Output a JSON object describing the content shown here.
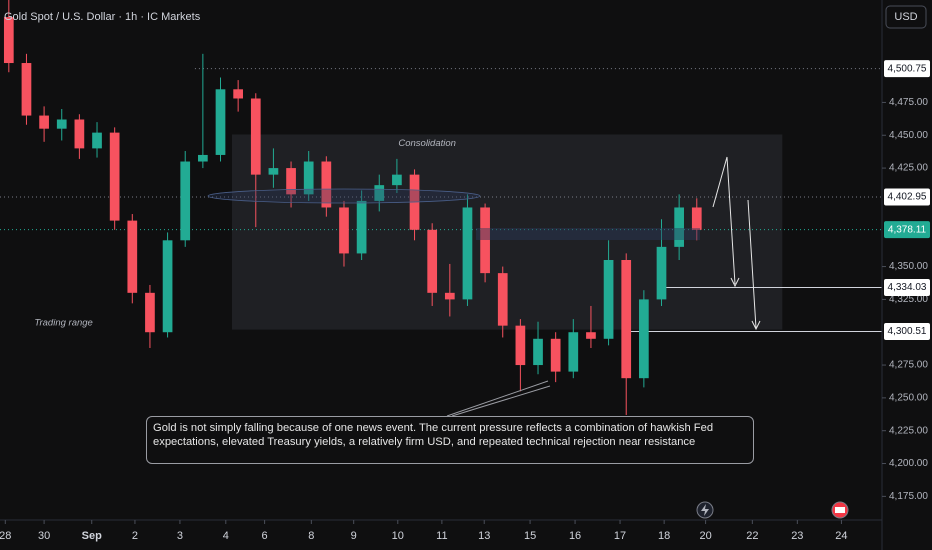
{
  "header": {
    "title": "Gold Spot / U.S. Dollar · 1h · IC Markets",
    "currency": "USD"
  },
  "chart_data": {
    "type": "candlestick",
    "x": [
      1,
      3,
      5,
      7,
      9,
      11,
      13,
      15,
      17,
      19,
      21,
      23,
      25,
      27,
      29,
      31,
      33,
      35,
      37,
      39,
      41,
      43,
      45,
      47,
      49,
      51,
      53,
      55,
      57,
      59,
      61,
      63,
      65,
      67,
      69,
      71,
      73,
      75,
      77,
      79
    ],
    "open": [
      4540,
      4505,
      4465,
      4455,
      4462,
      4440,
      4452,
      4385,
      4330,
      4300,
      4370,
      4430,
      4435,
      4485,
      4478,
      4420,
      4425,
      4405,
      4430,
      4395,
      4360,
      4400,
      4412,
      4420,
      4378,
      4330,
      4325,
      4395,
      4345,
      4305,
      4275,
      4295,
      4270,
      4300,
      4295,
      4355,
      4265,
      4325,
      4365,
      4395
    ],
    "high": [
      4553,
      4512,
      4472,
      4470,
      4466,
      4460,
      4456,
      4390,
      4336,
      4376,
      4438,
      4512,
      4494,
      4492,
      4482,
      4440,
      4430,
      4438,
      4434,
      4400,
      4408,
      4420,
      4432,
      4424,
      4383,
      4352,
      4405,
      4398,
      4350,
      4310,
      4308,
      4300,
      4310,
      4320,
      4370,
      4360,
      4332,
      4386,
      4405,
      4402
    ],
    "low": [
      4498,
      4458,
      4445,
      4446,
      4432,
      4433,
      4378,
      4322,
      4288,
      4296,
      4365,
      4425,
      4430,
      4468,
      4380,
      4410,
      4395,
      4400,
      4388,
      4350,
      4355,
      4392,
      4406,
      4370,
      4320,
      4312,
      4320,
      4338,
      4296,
      4255,
      4268,
      4262,
      4265,
      4288,
      4290,
      4237,
      4258,
      4320,
      4355,
      4370
    ],
    "close": [
      4505,
      4465,
      4455,
      4462,
      4440,
      4452,
      4385,
      4330,
      4300,
      4370,
      4430,
      4435,
      4485,
      4478,
      4420,
      4425,
      4405,
      4430,
      4395,
      4360,
      4400,
      4412,
      4420,
      4378,
      4330,
      4325,
      4395,
      4345,
      4305,
      4275,
      4295,
      4270,
      4300,
      4295,
      4355,
      4265,
      4325,
      4365,
      4395,
      4378
    ],
    "up_color": "#22ab94",
    "down_color": "#f7525f",
    "xlim": [
      0,
      100
    ],
    "ylim": [
      4157,
      4553
    ],
    "xticks": [
      {
        "value": 0.6,
        "label": "28"
      },
      {
        "value": 5,
        "label": "30"
      },
      {
        "value": 10.4,
        "label": "Sep"
      },
      {
        "value": 15.3,
        "label": "2"
      },
      {
        "value": 20.4,
        "label": "3"
      },
      {
        "value": 25.6,
        "label": "4"
      },
      {
        "value": 30,
        "label": "6"
      },
      {
        "value": 35.3,
        "label": "8"
      },
      {
        "value": 40.1,
        "label": "9"
      },
      {
        "value": 45.1,
        "label": "10"
      },
      {
        "value": 50.1,
        "label": "11"
      },
      {
        "value": 54.9,
        "label": "13"
      },
      {
        "value": 60.1,
        "label": "15"
      },
      {
        "value": 65.2,
        "label": "16"
      },
      {
        "value": 70.3,
        "label": "17"
      },
      {
        "value": 75.3,
        "label": "18"
      },
      {
        "value": 80,
        "label": "20"
      },
      {
        "value": 85.3,
        "label": "22"
      },
      {
        "value": 90.4,
        "label": "23"
      },
      {
        "value": 95.4,
        "label": "24"
      }
    ],
    "yticks": [
      {
        "value": 4475,
        "label": "4,475.00"
      },
      {
        "value": 4450,
        "label": "4,450.00"
      },
      {
        "value": 4425,
        "label": "4,425.00"
      },
      {
        "value": 4350,
        "label": "4,350.00"
      },
      {
        "value": 4325,
        "label": "4,325.00"
      },
      {
        "value": 4275,
        "label": "4,275.00"
      },
      {
        "value": 4250,
        "label": "4,250.00"
      },
      {
        "value": 4225,
        "label": "4,225.00"
      },
      {
        "value": 4200,
        "label": "4,200.00"
      },
      {
        "value": 4175,
        "label": "4,175.00"
      }
    ],
    "price_levels": [
      {
        "value": 4500.75,
        "label": "4,500.75",
        "x_start": 22.1,
        "style": "dotted"
      },
      {
        "value": 4402.95,
        "label": "4,402.95",
        "x_start": 0,
        "style": "dotted"
      },
      {
        "value": 4378.11,
        "label": "4,378.11",
        "x_start": 0,
        "style": "dotted",
        "color": "#22ab94"
      },
      {
        "value": 4334.03,
        "label": "4,334.03",
        "x_start": 75.4,
        "style": "solid"
      },
      {
        "value": 4300.51,
        "label": "4,300.51",
        "x_start": 71.4,
        "style": "solid"
      }
    ],
    "range_box": {
      "label": "Consolidation",
      "xlim": [
        26.3,
        88.7
      ],
      "ylim": [
        4302,
        4450.6
      ]
    },
    "range_label": {
      "text": "Trading range",
      "x": 3.9,
      "y": 4307
    },
    "note": "Gold is not simply falling because of one news event. The current pressure reflects a combination of hawkish Fed expectations, elevated Treasury yields, a relatively firm USD, and repeated technical rejection near resistance"
  }
}
